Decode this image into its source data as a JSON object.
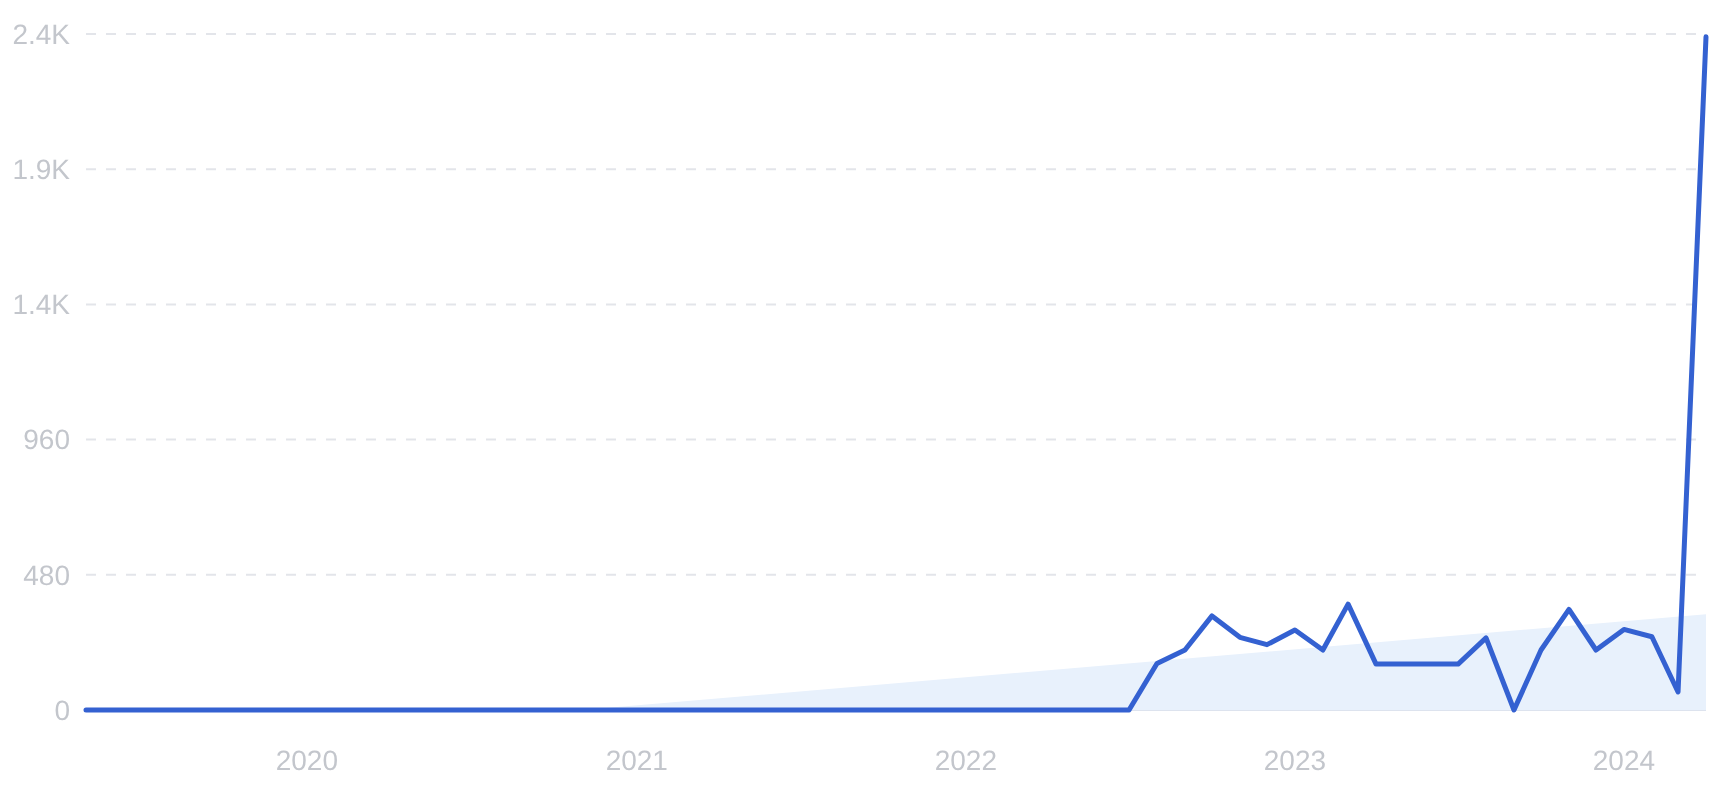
{
  "chart_data": {
    "type": "line",
    "x": [
      "2019-05",
      "2019-06",
      "2019-07",
      "2019-08",
      "2019-09",
      "2019-10",
      "2019-11",
      "2019-12",
      "2020-01",
      "2020-02",
      "2020-03",
      "2020-04",
      "2020-05",
      "2020-06",
      "2020-07",
      "2020-08",
      "2020-09",
      "2020-10",
      "2020-11",
      "2020-12",
      "2021-01",
      "2021-02",
      "2021-03",
      "2021-04",
      "2021-05",
      "2021-06",
      "2021-07",
      "2021-08",
      "2021-09",
      "2021-10",
      "2021-11",
      "2021-12",
      "2022-01",
      "2022-02",
      "2022-03",
      "2022-04",
      "2022-05",
      "2022-06",
      "2022-07",
      "2022-08",
      "2022-09",
      "2022-10",
      "2022-11",
      "2022-12",
      "2023-01",
      "2023-02",
      "2023-03",
      "2023-04",
      "2023-05",
      "2023-06",
      "2023-07",
      "2023-08",
      "2023-09",
      "2023-10",
      "2023-11",
      "2023-12",
      "2024-01",
      "2024-02",
      "2024-03",
      "2024-04"
    ],
    "series": [
      {
        "type": "area",
        "color": "#e8f1fc",
        "x": [
          "2020-11",
          "2024-04"
        ],
        "values": [
          0,
          340
        ]
      },
      {
        "color": "#3461d1",
        "values": [
          0,
          0,
          0,
          0,
          0,
          0,
          0,
          0,
          0,
          0,
          0,
          0,
          0,
          0,
          0,
          0,
          0,
          0,
          0,
          0,
          0,
          0,
          0,
          0,
          0,
          0,
          0,
          0,
          0,
          0,
          0,
          0,
          0,
          0,
          0,
          0,
          0,
          0,
          0,
          165,
          213,
          334,
          258,
          232,
          284,
          213,
          376,
          163,
          163,
          163,
          163,
          256,
          0,
          213,
          357,
          213,
          286,
          260,
          64,
          2390
        ]
      }
    ],
    "xlim": [
      "2019-05",
      "2024-04"
    ],
    "xticks": [
      "2020",
      "2021",
      "2022",
      "2023",
      "2024"
    ],
    "ylim": [
      0,
      2400
    ],
    "yticks": [
      0,
      480,
      960,
      {
        "value": 1440,
        "label": "1.4K"
      },
      {
        "value": 1920,
        "label": "1.9K"
      },
      {
        "value": 2400,
        "label": "2.4K"
      }
    ],
    "grid": "y",
    "marker": "none",
    "line_style": "solid"
  }
}
